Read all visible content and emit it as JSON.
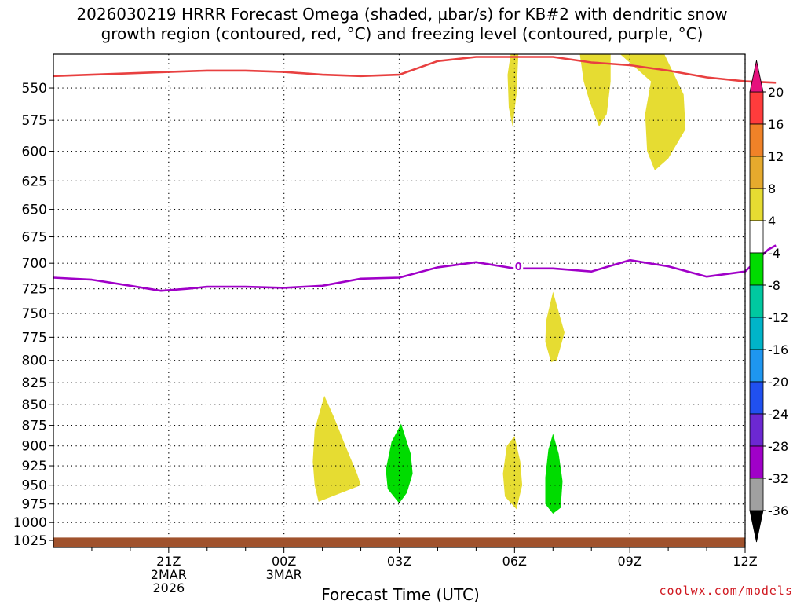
{
  "chart_data": {
    "type": "heatmap",
    "title_line1": "2026030219 HRRR Forecast Omega (shaded, μbar/s) for KB#2 with dendritic snow",
    "title_line2": "growth region (contoured, red, °C) and freezing level (contoured, purple, °C)",
    "xlabel": "Forecast Time (UTC)",
    "credit": "coolwx.com/models",
    "x_range_hours": [
      -3.0,
      15.0
    ],
    "y_range_hpa": [
      1035,
      525
    ],
    "y_ticks": [
      550,
      575,
      600,
      625,
      650,
      675,
      700,
      725,
      750,
      775,
      800,
      825,
      850,
      875,
      900,
      925,
      950,
      975,
      1000,
      1025
    ],
    "x_ticks": [
      {
        "h": 0,
        "label": "21Z",
        "sub1": "2MAR",
        "sub2": "2026"
      },
      {
        "h": 3,
        "label": "00Z",
        "sub1": "3MAR",
        "sub2": ""
      },
      {
        "h": 6,
        "label": "03Z",
        "sub1": "",
        "sub2": ""
      },
      {
        "h": 9,
        "label": "06Z",
        "sub1": "",
        "sub2": ""
      },
      {
        "h": 12,
        "label": "09Z",
        "sub1": "",
        "sub2": ""
      },
      {
        "h": 15,
        "label": "12Z",
        "sub1": "",
        "sub2": ""
      }
    ],
    "grid": true,
    "colorbar": {
      "labels": [
        "20",
        "16",
        "12",
        "8",
        "4",
        "-4",
        "-8",
        "-12",
        "-16",
        "-20",
        "-24",
        "-28",
        "-32",
        "-36"
      ],
      "colors": [
        "#ff3c3c",
        "#f08228",
        "#e6aa2d",
        "#e6dc32",
        "#ffffff",
        "#00dc00",
        "#00c8a0",
        "#00b4c8",
        "#1e96f0",
        "#2050f0",
        "#6c28d2",
        "#a000c8",
        "#a0a0a0"
      ],
      "top_color": "#e6117d",
      "bottom_color": "#000000"
    },
    "freezing_level": {
      "color": "#a000c8",
      "label": "0",
      "label_at": {
        "h": 9.1,
        "p": 703
      },
      "points": [
        [
          -3,
          714
        ],
        [
          -2,
          716
        ],
        [
          -1,
          722
        ],
        [
          -0.2,
          727
        ],
        [
          0.5,
          725
        ],
        [
          1,
          723
        ],
        [
          2,
          723
        ],
        [
          3,
          724
        ],
        [
          4,
          722
        ],
        [
          5,
          715
        ],
        [
          6,
          714
        ],
        [
          7,
          704
        ],
        [
          8,
          699
        ],
        [
          9,
          705
        ],
        [
          10,
          705
        ],
        [
          11,
          708
        ],
        [
          12,
          697
        ],
        [
          13,
          703
        ],
        [
          14,
          713
        ],
        [
          15,
          708
        ],
        [
          15.6,
          687
        ],
        [
          15.8,
          683
        ]
      ]
    },
    "dgz_line": {
      "color": "#e84040",
      "points": [
        [
          -3,
          541
        ],
        [
          -2,
          540
        ],
        [
          -1,
          539
        ],
        [
          0,
          538
        ],
        [
          1,
          537
        ],
        [
          2,
          537
        ],
        [
          3,
          538
        ],
        [
          4,
          540
        ],
        [
          5,
          541
        ],
        [
          6,
          540
        ],
        [
          6.6,
          534
        ],
        [
          7,
          530
        ],
        [
          8,
          527
        ],
        [
          10,
          527
        ],
        [
          11,
          531
        ],
        [
          12,
          533
        ],
        [
          13,
          537
        ],
        [
          14,
          542
        ],
        [
          15,
          545
        ],
        [
          15.8,
          546
        ]
      ]
    },
    "omega_regions": [
      {
        "value": 4,
        "color": "#e6dc32",
        "points": [
          [
            4.05,
            840
          ],
          [
            4.3,
            865
          ],
          [
            4.6,
            900
          ],
          [
            4.9,
            935
          ],
          [
            5.0,
            950
          ],
          [
            3.9,
            972
          ],
          [
            3.8,
            950
          ],
          [
            3.75,
            920
          ],
          [
            3.8,
            880
          ]
        ]
      },
      {
        "value": -4,
        "color": "#00dc00",
        "points": [
          [
            6.05,
            873
          ],
          [
            6.3,
            910
          ],
          [
            6.35,
            935
          ],
          [
            6.2,
            960
          ],
          [
            6.0,
            974
          ],
          [
            5.7,
            955
          ],
          [
            5.65,
            930
          ],
          [
            5.8,
            895
          ]
        ]
      },
      {
        "value": 4,
        "color": "#e6dc32",
        "points": [
          [
            9.0,
            888
          ],
          [
            9.15,
            920
          ],
          [
            9.2,
            950
          ],
          [
            9.05,
            982
          ],
          [
            8.75,
            965
          ],
          [
            8.7,
            935
          ],
          [
            8.8,
            900
          ]
        ]
      },
      {
        "value": -4,
        "color": "#00dc00",
        "points": [
          [
            10.0,
            885
          ],
          [
            10.15,
            910
          ],
          [
            10.25,
            945
          ],
          [
            10.2,
            980
          ],
          [
            10.0,
            988
          ],
          [
            9.8,
            975
          ],
          [
            9.8,
            940
          ],
          [
            9.88,
            905
          ]
        ]
      },
      {
        "value": 4,
        "color": "#e6dc32",
        "points": [
          [
            10.0,
            728
          ],
          [
            10.3,
            770
          ],
          [
            10.1,
            800
          ],
          [
            9.95,
            802
          ],
          [
            9.8,
            780
          ],
          [
            9.82,
            758
          ]
        ]
      },
      {
        "value": 4,
        "color": "#e6dc32",
        "points": [
          [
            8.9,
            525
          ],
          [
            9.1,
            525
          ],
          [
            9.05,
            555
          ],
          [
            8.95,
            580
          ],
          [
            8.85,
            565
          ],
          [
            8.82,
            540
          ]
        ]
      },
      {
        "value": 4,
        "color": "#e6dc32",
        "points": [
          [
            10.7,
            525
          ],
          [
            11.5,
            525
          ],
          [
            11.5,
            545
          ],
          [
            11.4,
            570
          ],
          [
            11.2,
            580
          ],
          [
            10.95,
            560
          ],
          [
            10.8,
            545
          ]
        ]
      },
      {
        "value": 4,
        "color": "#e6dc32",
        "points": [
          [
            11.75,
            525
          ],
          [
            12.9,
            525
          ],
          [
            13.4,
            555
          ],
          [
            13.45,
            582
          ],
          [
            13.0,
            606
          ],
          [
            12.65,
            616
          ],
          [
            12.45,
            600
          ],
          [
            12.4,
            570
          ],
          [
            12.55,
            545
          ]
        ]
      }
    ],
    "surface": {
      "color": "#a0522d",
      "from_hpa": 1021,
      "to_hpa": 1035
    }
  }
}
